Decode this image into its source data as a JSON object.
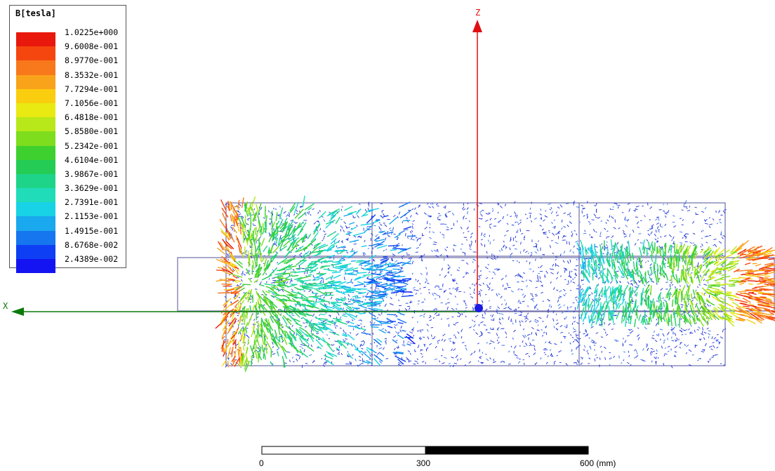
{
  "legend": {
    "title": "B[tesla]",
    "values": [
      "1.0225e+000",
      "9.6008e-001",
      "8.9770e-001",
      "8.3532e-001",
      "7.7294e-001",
      "7.1056e-001",
      "6.4818e-001",
      "5.8580e-001",
      "5.2342e-001",
      "4.6104e-001",
      "3.9867e-001",
      "3.3629e-001",
      "2.7391e-001",
      "2.1153e-001",
      "1.4915e-001",
      "8.6768e-002",
      "2.4389e-002"
    ],
    "colors": [
      "#e8180c",
      "#f5460f",
      "#f8781c",
      "#f9a31a",
      "#fbcd0f",
      "#e8ea12",
      "#b9e81a",
      "#7edd1c",
      "#3ed02e",
      "#24cc55",
      "#1ed489",
      "#21dcb8",
      "#18d2e6",
      "#1aa8ee",
      "#1576ef",
      "#0e3ff4",
      "#1414f2"
    ]
  },
  "axes": {
    "z_label": "Z",
    "x_label": "X"
  },
  "scale": {
    "ticks": [
      "0",
      "300",
      "600 (mm)"
    ]
  }
}
